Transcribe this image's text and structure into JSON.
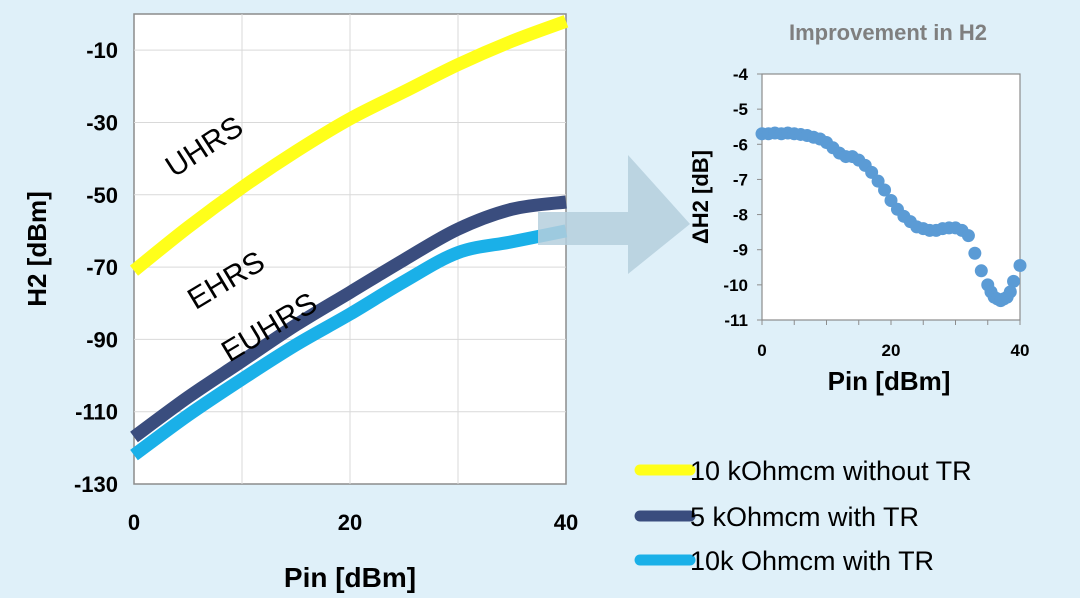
{
  "chart_data": [
    {
      "type": "line",
      "xlabel": "Pin [dBm]",
      "ylabel": "H2 [dBm]",
      "xlim": [
        0,
        40
      ],
      "ylim": [
        -130,
        0
      ],
      "x_ticks": [
        "0",
        "20",
        "40"
      ],
      "y_ticks": [
        "-10",
        "-30",
        "-50",
        "-70",
        "-90",
        "-110",
        "-130"
      ],
      "grid": true,
      "series": [
        {
          "name": "10 kOhmcm without TR",
          "color": "#ffff1a",
          "x": [
            0,
            5,
            10,
            15,
            20,
            25,
            30,
            35,
            40
          ],
          "y": [
            -71,
            -59,
            -48,
            -38,
            -29,
            -21.5,
            -14,
            -7.5,
            -2
          ]
        },
        {
          "name": "5 kOhmcm with TR",
          "color": "#3a4d7e",
          "x": [
            0,
            5,
            10,
            15,
            20,
            25,
            30,
            35,
            40
          ],
          "y": [
            -117,
            -106,
            -96,
            -86,
            -77,
            -68,
            -59.5,
            -54,
            -52
          ]
        },
        {
          "name": "10k Ohmcm with TR",
          "color": "#1ab0e8",
          "x": [
            0,
            5,
            10,
            15,
            20,
            25,
            30,
            35,
            40
          ],
          "y": [
            -122,
            -111,
            -101,
            -91.5,
            -83,
            -74,
            -66,
            -63,
            -60
          ]
        }
      ],
      "annotations": [
        {
          "text": "UHRS",
          "x": 7,
          "y": -39
        },
        {
          "text": "EHRS",
          "x": 9,
          "y": -76
        },
        {
          "text": "EUHRS",
          "x": 13,
          "y": -89
        }
      ],
      "legend": {
        "placement": "bottom-right",
        "entries": [
          "10 kOhmcm without TR",
          "5 kOhmcm with TR",
          "10k Ohmcm with TR"
        ]
      }
    },
    {
      "type": "scatter",
      "title": "Improvement in H2",
      "xlabel": "Pin [dBm]",
      "ylabel": "ΔH2 [dB]",
      "xlim": [
        0,
        40
      ],
      "ylim": [
        -11,
        -4
      ],
      "x_ticks": [
        "0",
        "20",
        "40"
      ],
      "y_ticks": [
        "-4",
        "-5",
        "-6",
        "-7",
        "-8",
        "-9",
        "-10",
        "-11"
      ],
      "grid": false,
      "series": [
        {
          "color": "#5b9bd5",
          "x": [
            0,
            1,
            2,
            3,
            4,
            5,
            6,
            7,
            8,
            9,
            10,
            11,
            12,
            13,
            14,
            15,
            16,
            17,
            18,
            19,
            20,
            21,
            22,
            23,
            24,
            25,
            26,
            27,
            28,
            29,
            30,
            31,
            32,
            33,
            34,
            35,
            35.5,
            36,
            36.5,
            37,
            37.5,
            38,
            38.5,
            39,
            40
          ],
          "y": [
            -5.7,
            -5.7,
            -5.68,
            -5.7,
            -5.68,
            -5.7,
            -5.72,
            -5.75,
            -5.8,
            -5.85,
            -5.95,
            -6.1,
            -6.25,
            -6.35,
            -6.35,
            -6.45,
            -6.6,
            -6.8,
            -7.05,
            -7.3,
            -7.6,
            -7.85,
            -8.05,
            -8.2,
            -8.35,
            -8.4,
            -8.45,
            -8.45,
            -8.4,
            -8.38,
            -8.38,
            -8.45,
            -8.6,
            -9.1,
            -9.6,
            -10.0,
            -10.2,
            -10.35,
            -10.4,
            -10.45,
            -10.4,
            -10.35,
            -10.2,
            -9.9,
            -9.45
          ]
        }
      ]
    }
  ]
}
